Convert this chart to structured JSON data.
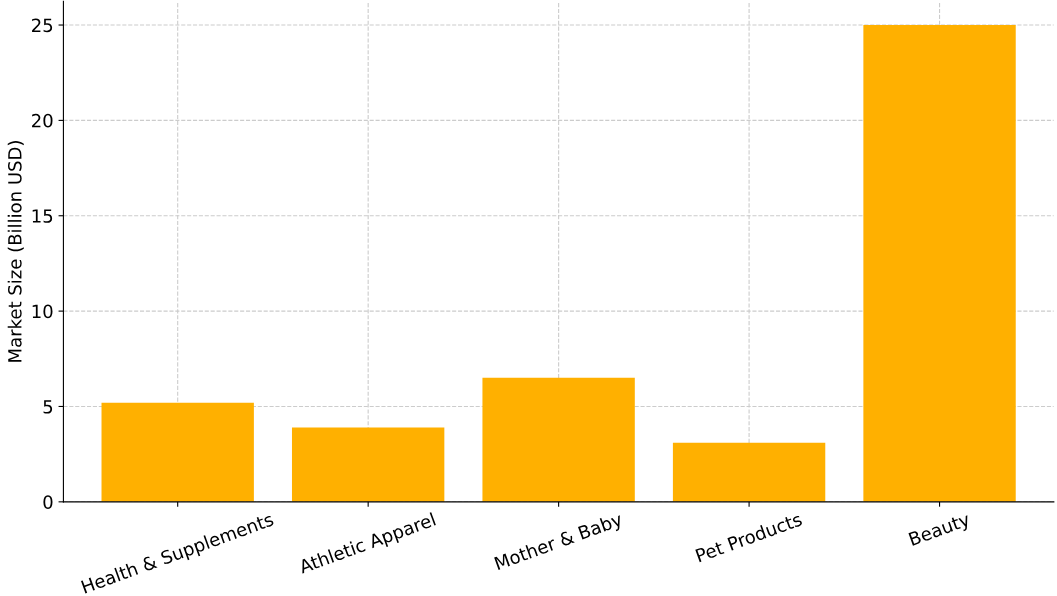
{
  "chart_data": {
    "type": "bar",
    "ylabel": "Market Size (Billion USD)",
    "categories": [
      "Health & Supplements",
      "Athletic Apparel",
      "Mother & Baby",
      "Pet Products",
      "Beauty"
    ],
    "values": [
      5.2,
      3.9,
      6.5,
      3.1,
      25
    ],
    "color": "#ffb000",
    "ylim": [
      0,
      26.25
    ],
    "yticks": [
      0,
      5,
      10,
      15,
      20,
      25
    ],
    "grid": true
  }
}
